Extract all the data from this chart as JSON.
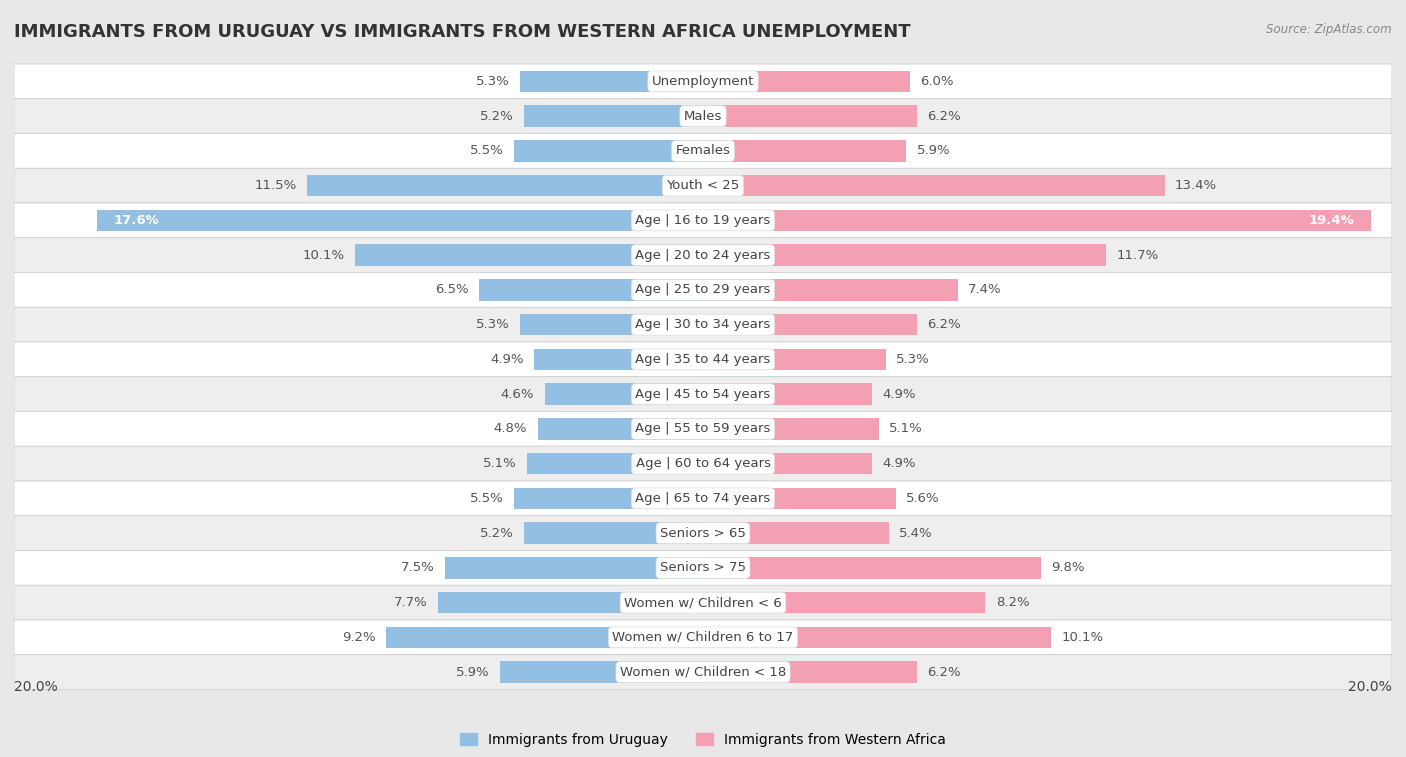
{
  "title": "IMMIGRANTS FROM URUGUAY VS IMMIGRANTS FROM WESTERN AFRICA UNEMPLOYMENT",
  "source": "Source: ZipAtlas.com",
  "categories": [
    "Unemployment",
    "Males",
    "Females",
    "Youth < 25",
    "Age | 16 to 19 years",
    "Age | 20 to 24 years",
    "Age | 25 to 29 years",
    "Age | 30 to 34 years",
    "Age | 35 to 44 years",
    "Age | 45 to 54 years",
    "Age | 55 to 59 years",
    "Age | 60 to 64 years",
    "Age | 65 to 74 years",
    "Seniors > 65",
    "Seniors > 75",
    "Women w/ Children < 6",
    "Women w/ Children 6 to 17",
    "Women w/ Children < 18"
  ],
  "uruguay_values": [
    5.3,
    5.2,
    5.5,
    11.5,
    17.6,
    10.1,
    6.5,
    5.3,
    4.9,
    4.6,
    4.8,
    5.1,
    5.5,
    5.2,
    7.5,
    7.7,
    9.2,
    5.9
  ],
  "western_africa_values": [
    6.0,
    6.2,
    5.9,
    13.4,
    19.4,
    11.7,
    7.4,
    6.2,
    5.3,
    4.9,
    5.1,
    4.9,
    5.6,
    5.4,
    9.8,
    8.2,
    10.1,
    6.2
  ],
  "uruguay_color": "#93bfe2",
  "western_africa_color": "#f4a0b4",
  "background_outer": "#e8e8e8",
  "row_color_light": "#ffffff",
  "row_color_dark": "#eeeeee",
  "max_value": 20.0,
  "label_uruguay": "Immigrants from Uruguay",
  "label_western_africa": "Immigrants from Western Africa",
  "title_fontsize": 13,
  "axis_fontsize": 10,
  "bar_label_fontsize": 9.5,
  "category_fontsize": 9.5,
  "value_label_color_dark": "#555555",
  "value_label_color_white": "#ffffff"
}
